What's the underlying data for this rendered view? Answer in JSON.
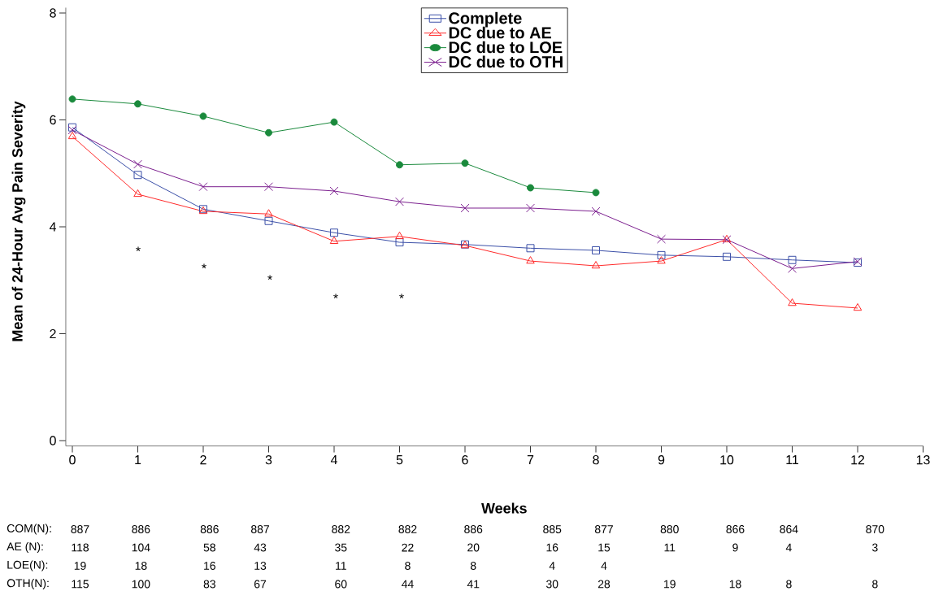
{
  "chart_data": {
    "type": "line",
    "xlabel": "Weeks",
    "ylabel": "Mean of 24-Hour Avg Pain Severity",
    "x": [
      0,
      1,
      2,
      3,
      4,
      5,
      6,
      7,
      8,
      9,
      10,
      11,
      12
    ],
    "xlim": [
      -0.1,
      13
    ],
    "ylim": [
      -0.1,
      8.1
    ],
    "xticks": [
      0,
      1,
      2,
      3,
      4,
      5,
      6,
      7,
      8,
      9,
      10,
      11,
      12,
      13
    ],
    "yticks": [
      0,
      2,
      4,
      6,
      8
    ],
    "legend": "top",
    "series": [
      {
        "name": "Complete",
        "color": "#3b4fa8",
        "marker": "square",
        "values": [
          5.86,
          4.97,
          4.33,
          4.11,
          3.89,
          3.71,
          3.67,
          3.6,
          3.56,
          3.47,
          3.44,
          3.38,
          3.33
        ]
      },
      {
        "name": "DC due to AE",
        "color": "#ff2a2a",
        "marker": "triangle",
        "values": [
          5.69,
          4.61,
          4.29,
          4.24,
          3.73,
          3.82,
          3.65,
          3.36,
          3.27,
          3.36,
          3.76,
          2.57,
          2.48
        ]
      },
      {
        "name": "DC due to LOE",
        "color": "#1a8a3c",
        "marker": "circle",
        "values": [
          6.39,
          6.3,
          6.07,
          5.76,
          5.96,
          5.16,
          5.19,
          4.73,
          4.64,
          null,
          null,
          null,
          null
        ]
      },
      {
        "name": "DC due to OTH",
        "color": "#7b1f8f",
        "marker": "cross",
        "values": [
          5.81,
          5.17,
          4.75,
          4.75,
          4.67,
          4.47,
          4.35,
          4.35,
          4.29,
          3.77,
          3.76,
          3.22,
          3.35
        ]
      }
    ],
    "annotations": [
      "*",
      "*",
      "*",
      "*",
      "*",
      "COM(N):",
      "887",
      "886",
      "886",
      "887",
      "882",
      "882",
      "886",
      "885",
      "877",
      "880",
      "866",
      "864",
      "870",
      "AE (N):",
      "118",
      "104",
      "58",
      "43",
      "35",
      "22",
      "20",
      "16",
      "15",
      "11",
      "9",
      "4",
      "3",
      "LOE(N):",
      "19",
      "18",
      "16",
      "13",
      "11",
      "8",
      "8",
      "4",
      "4",
      "OTH(N):",
      "115",
      "100",
      "83",
      "67",
      "60",
      "44",
      "41",
      "30",
      "28",
      "19",
      "18",
      "8",
      "8"
    ]
  }
}
